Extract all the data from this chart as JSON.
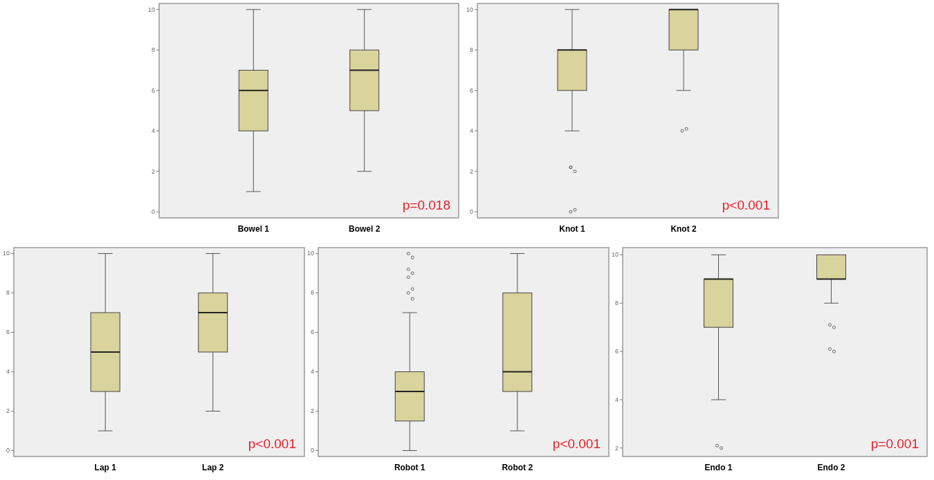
{
  "chart_data": [
    {
      "type": "box",
      "categories": [
        "Bowel 1",
        "Bowel 2"
      ],
      "series": [
        {
          "color": "#d9d39c",
          "boxes": [
            {
              "low": 1,
              "q1": 4,
              "median": 6,
              "q3": 7,
              "high": 10
            },
            {
              "low": 2,
              "q1": 5,
              "median": 7,
              "q3": 8,
              "high": 10
            }
          ]
        }
      ],
      "ylim": [
        -0.3,
        10.3
      ],
      "yticks": [
        0,
        2,
        4,
        6,
        8,
        10
      ],
      "annotations": [
        "p=0.018"
      ]
    },
    {
      "type": "box",
      "categories": [
        "Knot 1",
        "Knot 2"
      ],
      "series": [
        {
          "color": "#d9d39c",
          "boxes": [
            {
              "low": 4,
              "q1": 6,
              "median": 8,
              "q3": 8,
              "high": 10,
              "outliers": [
                2.2,
                2,
                2.2,
                0.1,
                0
              ]
            },
            {
              "low": 6,
              "q1": 8,
              "median": 10,
              "q3": 10,
              "high": 10,
              "outliers": [
                4,
                4.1
              ]
            }
          ]
        }
      ],
      "ylim": [
        -0.3,
        10.3
      ],
      "yticks": [
        0,
        2,
        4,
        6,
        8,
        10
      ],
      "annotations": [
        "p<0.001"
      ]
    },
    {
      "type": "box",
      "categories": [
        "Lap 1",
        "Lap 2"
      ],
      "series": [
        {
          "color": "#d9d39c",
          "boxes": [
            {
              "low": 1,
              "q1": 3,
              "median": 5,
              "q3": 7,
              "high": 10
            },
            {
              "low": 2,
              "q1": 5,
              "median": 7,
              "q3": 8,
              "high": 10
            }
          ]
        }
      ],
      "ylim": [
        -0.3,
        10.3
      ],
      "yticks": [
        0,
        2,
        4,
        6,
        8,
        10
      ],
      "annotations": [
        "p<0.001"
      ]
    },
    {
      "type": "box",
      "categories": [
        "Robot 1",
        "Robot 2"
      ],
      "series": [
        {
          "color": "#d9d39c",
          "boxes": [
            {
              "low": 0,
              "q1": 1.5,
              "median": 3,
              "q3": 4,
              "high": 7,
              "outliers": [
                10,
                9.8,
                9.2,
                9,
                8.8,
                8.2,
                8,
                7.7
              ]
            },
            {
              "low": 1,
              "q1": 3,
              "median": 4,
              "q3": 8,
              "high": 10
            }
          ]
        }
      ],
      "ylim": [
        -0.3,
        10.3
      ],
      "yticks": [
        0,
        2,
        4,
        6,
        8,
        10
      ],
      "annotations": [
        "p<0.001"
      ]
    },
    {
      "type": "box",
      "categories": [
        "Endo 1",
        "Endo 2"
      ],
      "series": [
        {
          "color": "#d9d39c",
          "boxes": [
            {
              "low": 4,
              "q1": 7,
              "median": 9,
              "q3": 9,
              "high": 10,
              "outliers": [
                2.1,
                2
              ]
            },
            {
              "low": 8,
              "q1": 9,
              "median": 9,
              "q3": 10,
              "high": 10,
              "outliers": [
                7.1,
                7,
                6.1,
                6
              ]
            }
          ]
        }
      ],
      "ylim": [
        1.65,
        10.3
      ],
      "yticks": [
        2,
        4,
        6,
        8,
        10
      ],
      "annotations": [
        "p=0.001"
      ]
    }
  ]
}
